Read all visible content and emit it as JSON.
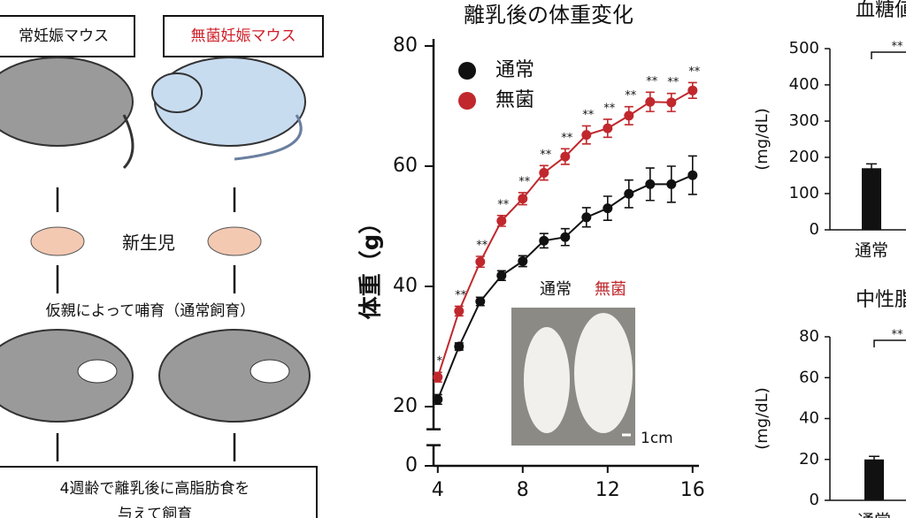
{
  "diagram": {
    "boxes": [
      "常妊娠マウス",
      "無菌妊娠マウス",
      "4週齢で離乳後に高脂肪食を",
      "与えて飼育"
    ],
    "newborn": "新生児",
    "foster": "仮親によって哺育（通常飼育）"
  },
  "chart_data": [
    {
      "type": "line",
      "title": "離乳後の体重変化",
      "y_label": "体重（g）",
      "x": [
        4,
        5,
        6,
        7,
        8,
        9,
        10,
        11,
        12,
        13,
        14,
        15,
        16
      ],
      "xlim": [
        3.8,
        16.3
      ],
      "xticks": [
        4,
        8,
        12,
        16
      ],
      "ylim": [
        0,
        80
      ],
      "yticks": [
        0,
        20,
        40,
        60,
        80
      ],
      "series": [
        {
          "name": "通常",
          "color": "#111111",
          "values": [
            21.2,
            30,
            37.5,
            41.8,
            44.2,
            47.6,
            48.2,
            51.5,
            53,
            55.4,
            57,
            57,
            58.5
          ],
          "errors": [
            0.8,
            0.6,
            0.7,
            0.8,
            0.9,
            1.2,
            1.4,
            1.6,
            2,
            2.3,
            2.7,
            3,
            3.2
          ]
        },
        {
          "name": "無菌",
          "color": "#c0282d",
          "values": [
            24.9,
            35.9,
            44.1,
            50.9,
            54.6,
            58.9,
            61.6,
            65.2,
            66.3,
            68.4,
            70.7,
            70.6,
            72.6
          ],
          "errors": [
            0.8,
            0.8,
            0.9,
            0.9,
            1,
            1.2,
            1.3,
            1.5,
            1.5,
            1.5,
            1.6,
            1.5,
            1.3
          ],
          "significance": [
            "*",
            "**",
            "**",
            "**",
            "**",
            "**",
            "**",
            "**",
            "**",
            "**",
            "**",
            "**",
            "**"
          ]
        }
      ],
      "inset": {
        "labels": [
          "通常",
          "無菌"
        ],
        "scale": "1cm"
      }
    },
    {
      "type": "bar",
      "title": "血糖値",
      "y_label": "(mg/dL)",
      "categories": [
        "通常"
      ],
      "values": [
        170
      ],
      "errors": [
        12
      ],
      "color": "#111111",
      "significance": "**",
      "ylim": [
        0,
        500
      ],
      "yticks": [
        0,
        100,
        200,
        300,
        400,
        500
      ]
    },
    {
      "type": "bar",
      "title": "中性脂",
      "y_label": "(mg/dL)",
      "categories": [
        "通常"
      ],
      "values": [
        20
      ],
      "errors": [
        1.5
      ],
      "color": "#111111",
      "significance": "**",
      "ylim": [
        0,
        80
      ],
      "yticks": [
        0,
        20,
        40,
        60,
        80
      ]
    }
  ]
}
